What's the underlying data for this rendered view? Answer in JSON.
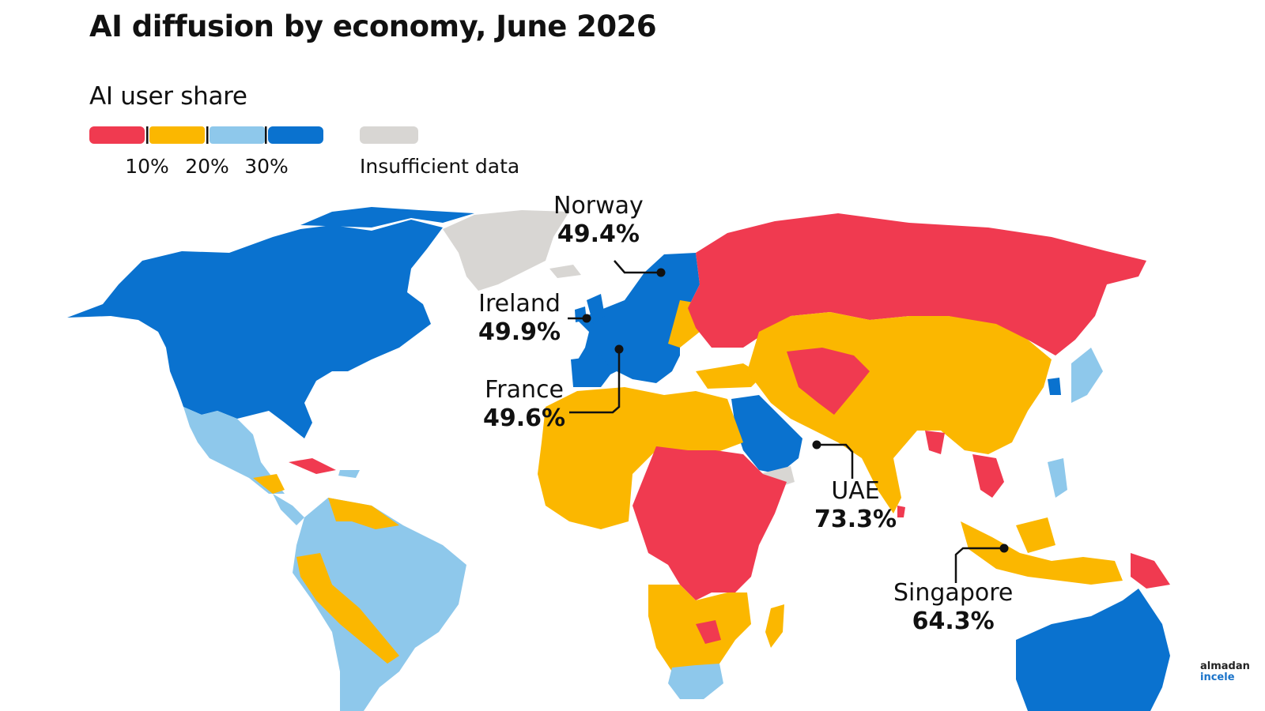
{
  "title": "AI diffusion by economy, June 2026",
  "legend": {
    "title": "AI user share",
    "thresholds": [
      "10%",
      "20%",
      "30%"
    ],
    "no_data_label": "Insufficient data",
    "bins": [
      {
        "range": "<10%",
        "color": "#f03a50"
      },
      {
        "range": "10-20%",
        "color": "#fbb700"
      },
      {
        "range": "20-30%",
        "color": "#8ec8eb"
      },
      {
        "range": ">30%",
        "color": "#0a72cf"
      }
    ],
    "no_data_color": "#d8d6d3"
  },
  "callouts": [
    {
      "country": "Norway",
      "value": "49.4%"
    },
    {
      "country": "Ireland",
      "value": "49.9%"
    },
    {
      "country": "France",
      "value": "49.6%"
    },
    {
      "country": "UAE",
      "value": "73.3%"
    },
    {
      "country": "Singapore",
      "value": "64.3%"
    }
  ],
  "logo": {
    "line1": "almadan",
    "line2": "incele"
  }
}
